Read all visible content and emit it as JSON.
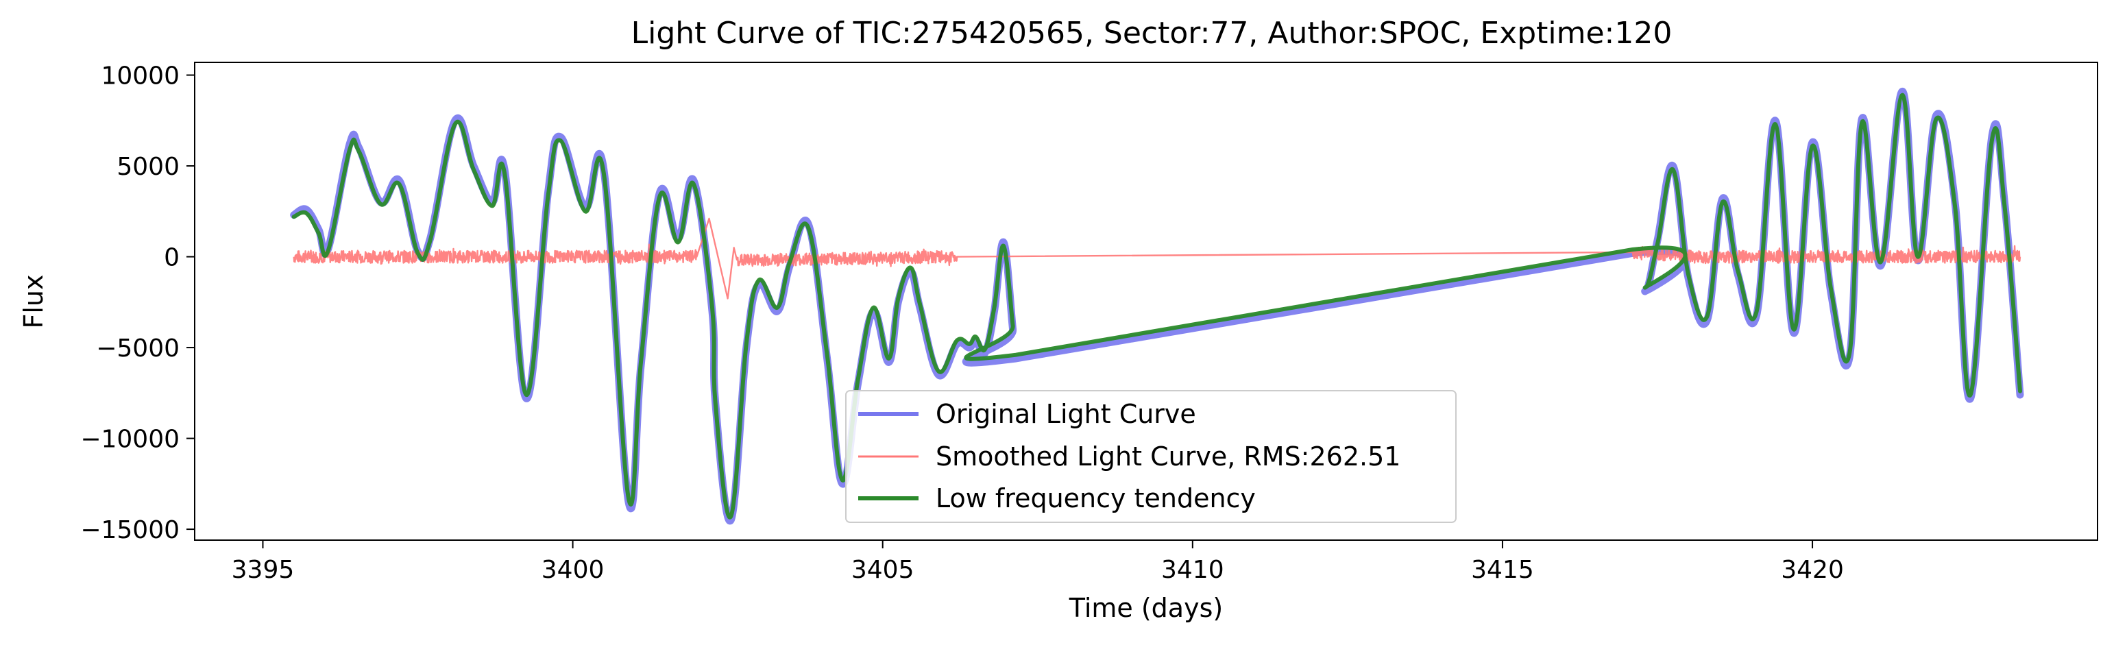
{
  "chart_data": {
    "type": "line",
    "title": "Light Curve of TIC:275420565, Sector:77, Author:SPOC, Exptime:120",
    "xlabel": "Time (days)",
    "ylabel": "Flux",
    "xlim": [
      3393.9,
      3424.6
    ],
    "ylim": [
      -15600,
      10700
    ],
    "xticks": [
      3395,
      3400,
      3405,
      3410,
      3415,
      3420
    ],
    "yticks": [
      10000,
      5000,
      0,
      -5000,
      -10000,
      -15000
    ],
    "xtick_labels": [
      "3395",
      "3400",
      "3405",
      "3410",
      "3415",
      "3420"
    ],
    "ytick_labels": [
      "10000",
      "5000",
      "0",
      "−5000",
      "−10000",
      "−15000"
    ],
    "grid": false,
    "legend_position": "lower center",
    "series": [
      {
        "name": "Original Light Curve",
        "color": "#7777ee",
        "x": [
          3395.5,
          3395.7,
          3395.9,
          3396.05,
          3396.4,
          3396.55,
          3396.9,
          3397.2,
          3397.5,
          3397.7,
          3398.1,
          3398.4,
          3398.7,
          3398.9,
          3399.25,
          3399.6,
          3399.8,
          3400.2,
          3400.5,
          3400.9,
          3401.1,
          3401.4,
          3401.7,
          3401.95,
          3402.25,
          3402.3,
          3402.55,
          3402.8,
          3403.0,
          3403.3,
          3403.5,
          3403.8,
          3404.1,
          3404.35,
          3404.6,
          3404.85,
          3405.1,
          3405.25,
          3405.45,
          3405.6,
          3405.9,
          3406.2,
          3406.4,
          3406.5,
          3406.65,
          3406.8,
          3406.95,
          3407.1,
          3407.15,
          3417.1,
          3417.3,
          3417.5,
          3417.75,
          3418.0,
          3418.3,
          3418.55,
          3418.8,
          3419.1,
          3419.4,
          3419.7,
          3420.0,
          3420.3,
          3420.6,
          3420.8,
          3421.1,
          3421.45,
          3421.7,
          3422.0,
          3422.3,
          3422.55,
          3422.9,
          3423.1,
          3423.35
        ],
        "y": [
          2300,
          2600,
          1500,
          400,
          6200,
          6000,
          3000,
          4200,
          300,
          1000,
          7500,
          5000,
          3000,
          4800,
          -7800,
          3500,
          6600,
          2700,
          4800,
          -13500,
          -6000,
          3500,
          1000,
          4200,
          -3000,
          -8000,
          -14500,
          -5000,
          -1500,
          -3000,
          -500,
          1800,
          -5500,
          -12500,
          -7000,
          -3000,
          -5800,
          -2500,
          -800,
          -2800,
          -6500,
          -4800,
          -5000,
          -4600,
          -5300,
          -3000,
          800,
          -4000,
          -5600,
          200,
          -1900,
          900,
          5000,
          -1200,
          -3500,
          3200,
          -1000,
          -3200,
          7500,
          -4200,
          6300,
          -2000,
          -5500,
          7600,
          -500,
          9100,
          -200,
          7800,
          3000,
          -7800,
          6700,
          3000,
          -7600
        ]
      },
      {
        "name": "Smoothed Light Curve, RMS:262.51",
        "color": "#ff7777",
        "x": [
          3395.5,
          3402.0,
          3402.2,
          3402.5,
          3402.6,
          3402.65,
          3406.2,
          3417.1,
          3418.1,
          3423.35
        ],
        "y": [
          0,
          0,
          2100,
          -2300,
          500,
          -200,
          0,
          250,
          0,
          0
        ],
        "noise_amplitude": 262.51
      },
      {
        "name": "Low frequency tendency",
        "color": "#2a8a2a",
        "x": [
          3395.5,
          3395.7,
          3395.9,
          3396.05,
          3396.4,
          3396.55,
          3396.9,
          3397.2,
          3397.5,
          3397.7,
          3398.1,
          3398.4,
          3398.7,
          3398.9,
          3399.25,
          3399.6,
          3399.8,
          3400.2,
          3400.5,
          3400.9,
          3401.1,
          3401.4,
          3401.7,
          3401.95,
          3402.25,
          3402.3,
          3402.55,
          3402.8,
          3403.0,
          3403.3,
          3403.5,
          3403.8,
          3404.1,
          3404.35,
          3404.6,
          3404.85,
          3405.1,
          3405.25,
          3405.45,
          3405.6,
          3405.9,
          3406.2,
          3406.4,
          3406.5,
          3406.65,
          3406.8,
          3406.95,
          3407.1,
          3407.15,
          3417.1,
          3417.3,
          3417.5,
          3417.75,
          3418.0,
          3418.3,
          3418.55,
          3418.8,
          3419.1,
          3419.4,
          3419.7,
          3420.0,
          3420.3,
          3420.6,
          3420.8,
          3421.1,
          3421.45,
          3421.7,
          3422.0,
          3422.3,
          3422.55,
          3422.9,
          3423.1,
          3423.35
        ],
        "y": [
          2200,
          2400,
          1300,
          300,
          5900,
          5800,
          2900,
          4000,
          200,
          900,
          7300,
          4800,
          2800,
          4600,
          -7600,
          3300,
          6400,
          2500,
          4600,
          -13300,
          -5800,
          3300,
          800,
          4000,
          -2800,
          -8000,
          -14300,
          -4800,
          -1300,
          -2800,
          -300,
          1600,
          -5300,
          -12300,
          -6800,
          -2800,
          -5600,
          -2300,
          -600,
          -2600,
          -6300,
          -4600,
          -4800,
          -4400,
          -5100,
          -2800,
          600,
          -3800,
          -5400,
          400,
          -1700,
          700,
          4800,
          -1000,
          -3300,
          3000,
          -800,
          -3000,
          7300,
          -4000,
          6100,
          -1800,
          -5300,
          7400,
          -300,
          8900,
          0,
          7600,
          2800,
          -7600,
          6500,
          2800,
          -7400
        ]
      }
    ]
  }
}
